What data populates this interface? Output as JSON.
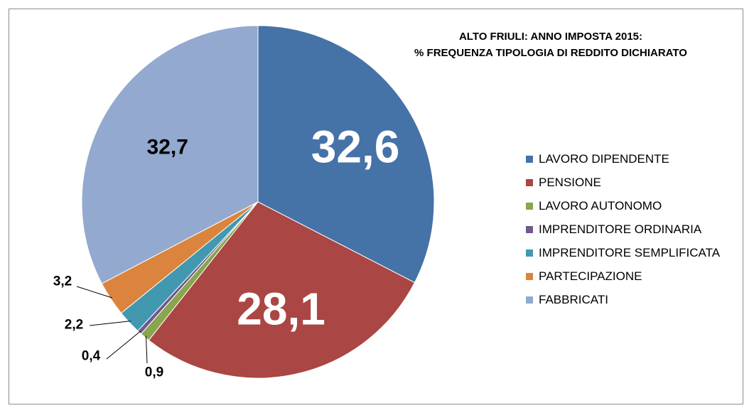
{
  "chart_data": {
    "type": "pie",
    "title_lines": [
      "ALTO FRIULI: ANNO IMPOSTA 2015:",
      "% FREQUENZA TIPOLOGIA DI REDDITO DICHIARATO"
    ],
    "legend_position": "right",
    "slices": [
      {
        "label": "LAVORO DIPENDENTE",
        "value": 32.6,
        "display": "32,6",
        "color": "#4572a7",
        "label_color": "#ffffff",
        "label_weight": "normal"
      },
      {
        "label": "PENSIONE",
        "value": 28.1,
        "display": "28,1",
        "color": "#aa4643",
        "label_color": "#ffffff",
        "label_weight": "normal"
      },
      {
        "label": "LAVORO AUTONOMO",
        "value": 0.9,
        "display": "0,9",
        "color": "#89a54e",
        "label_color": "#000000",
        "label_weight": "bold"
      },
      {
        "label": "IMPRENDITORE ORDINARIA",
        "value": 0.4,
        "display": "0,4",
        "color": "#71588f",
        "label_color": "#000000",
        "label_weight": "bold"
      },
      {
        "label": "IMPRENDITORE SEMPLIFICATA",
        "value": 2.2,
        "display": "2,2",
        "color": "#4198af",
        "label_color": "#000000",
        "label_weight": "bold"
      },
      {
        "label": "PARTECIPAZIONE",
        "value": 3.2,
        "display": "3,2",
        "color": "#db843d",
        "label_color": "#000000",
        "label_weight": "bold"
      },
      {
        "label": "FABBRICATI",
        "value": 32.7,
        "display": "32,7",
        "color": "#93a9cf",
        "label_color": "#000000",
        "label_weight": "bold"
      }
    ]
  }
}
